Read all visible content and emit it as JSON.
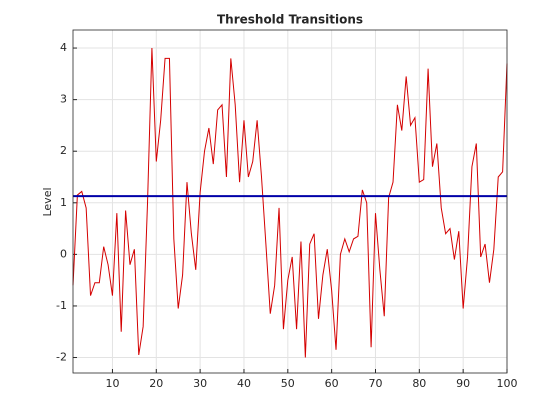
{
  "chart_data": {
    "type": "line",
    "title": "Threshold Transitions",
    "ylabel": "Level",
    "x": [
      1,
      2,
      3,
      4,
      5,
      6,
      7,
      8,
      9,
      10,
      11,
      12,
      13,
      14,
      15,
      16,
      17,
      18,
      19,
      20,
      21,
      22,
      23,
      24,
      25,
      26,
      27,
      28,
      29,
      30,
      31,
      32,
      33,
      34,
      35,
      36,
      37,
      38,
      39,
      40,
      41,
      42,
      43,
      44,
      45,
      46,
      47,
      48,
      49,
      50,
      51,
      52,
      53,
      54,
      55,
      56,
      57,
      58,
      59,
      60,
      61,
      62,
      63,
      64,
      65,
      66,
      67,
      68,
      69,
      70,
      71,
      72,
      73,
      74,
      75,
      76,
      77,
      78,
      79,
      80,
      81,
      82,
      83,
      84,
      85,
      86,
      87,
      88,
      89,
      90,
      91,
      92,
      93,
      94,
      95,
      96,
      97,
      98,
      99,
      100
    ],
    "series": [
      {
        "name": "Level",
        "color": "#d40000",
        "values": [
          -0.6,
          1.15,
          1.22,
          0.9,
          -0.8,
          -0.55,
          -0.55,
          0.15,
          -0.2,
          -0.8,
          0.8,
          -1.5,
          0.85,
          -0.2,
          0.1,
          -1.95,
          -1.4,
          1.0,
          4.0,
          1.8,
          2.6,
          3.8,
          3.8,
          0.3,
          -1.05,
          -0.4,
          1.4,
          0.4,
          -0.3,
          1.2,
          2.0,
          2.45,
          1.75,
          2.8,
          2.9,
          1.5,
          3.8,
          2.9,
          1.4,
          2.6,
          1.5,
          1.8,
          2.6,
          1.5,
          0.2,
          -1.15,
          -0.6,
          0.9,
          -1.45,
          -0.5,
          -0.05,
          -1.45,
          0.25,
          -2.0,
          0.2,
          0.4,
          -1.25,
          -0.4,
          0.1,
          -0.7,
          -1.85,
          0.0,
          0.3,
          0.05,
          0.3,
          0.35,
          1.25,
          1.0,
          -1.8,
          0.8,
          -0.3,
          -1.2,
          1.1,
          1.4,
          2.9,
          2.4,
          3.45,
          2.5,
          2.65,
          1.4,
          1.45,
          3.6,
          1.7,
          2.15,
          0.9,
          0.4,
          0.5,
          -0.1,
          0.45,
          -1.05,
          -0.05,
          1.7,
          2.15,
          -0.05,
          0.2,
          -0.55,
          0.1,
          1.5,
          1.6,
          3.7
        ]
      }
    ],
    "threshold": 1.13,
    "threshold_color": "#0000a8",
    "xlim": [
      1,
      100
    ],
    "ylim": [
      -2.3,
      4.35
    ],
    "xticks": [
      10,
      20,
      30,
      40,
      50,
      60,
      70,
      80,
      90,
      100
    ],
    "yticks": [
      -2,
      -1,
      0,
      1,
      2,
      3,
      4
    ],
    "grid": true
  }
}
